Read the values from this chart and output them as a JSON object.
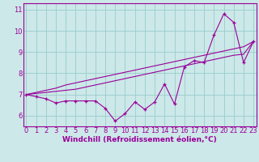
{
  "xlabel": "Windchill (Refroidissement éolien,°C)",
  "bg_color": "#cce8e8",
  "line_color": "#990099",
  "grid_color": "#99cccc",
  "x_data": [
    0,
    1,
    2,
    3,
    4,
    5,
    6,
    7,
    8,
    9,
    10,
    11,
    12,
    13,
    14,
    15,
    16,
    17,
    18,
    19,
    20,
    21,
    22,
    23
  ],
  "y_actual": [
    7.0,
    6.9,
    6.8,
    6.6,
    6.7,
    6.7,
    6.7,
    6.7,
    6.35,
    5.75,
    6.1,
    6.65,
    6.3,
    6.65,
    7.5,
    6.55,
    8.3,
    8.6,
    8.5,
    9.8,
    10.8,
    10.4,
    8.5,
    9.5
  ],
  "y_line1": [
    7.0,
    7.05,
    7.1,
    7.15,
    7.2,
    7.25,
    7.35,
    7.45,
    7.55,
    7.65,
    7.75,
    7.85,
    7.95,
    8.05,
    8.15,
    8.25,
    8.35,
    8.45,
    8.55,
    8.65,
    8.75,
    8.85,
    8.9,
    9.5
  ],
  "y_line2": [
    7.0,
    7.1,
    7.2,
    7.3,
    7.45,
    7.55,
    7.65,
    7.75,
    7.85,
    7.95,
    8.05,
    8.15,
    8.25,
    8.35,
    8.45,
    8.55,
    8.65,
    8.75,
    8.85,
    8.95,
    9.05,
    9.15,
    9.25,
    9.5
  ],
  "ylim": [
    5.5,
    11.3
  ],
  "yticks": [
    6,
    7,
    8,
    9,
    10,
    11
  ],
  "xticks": [
    0,
    1,
    2,
    3,
    4,
    5,
    6,
    7,
    8,
    9,
    10,
    11,
    12,
    13,
    14,
    15,
    16,
    17,
    18,
    19,
    20,
    21,
    22,
    23
  ],
  "xlabel_fontsize": 6.5,
  "tick_fontsize": 6.0
}
